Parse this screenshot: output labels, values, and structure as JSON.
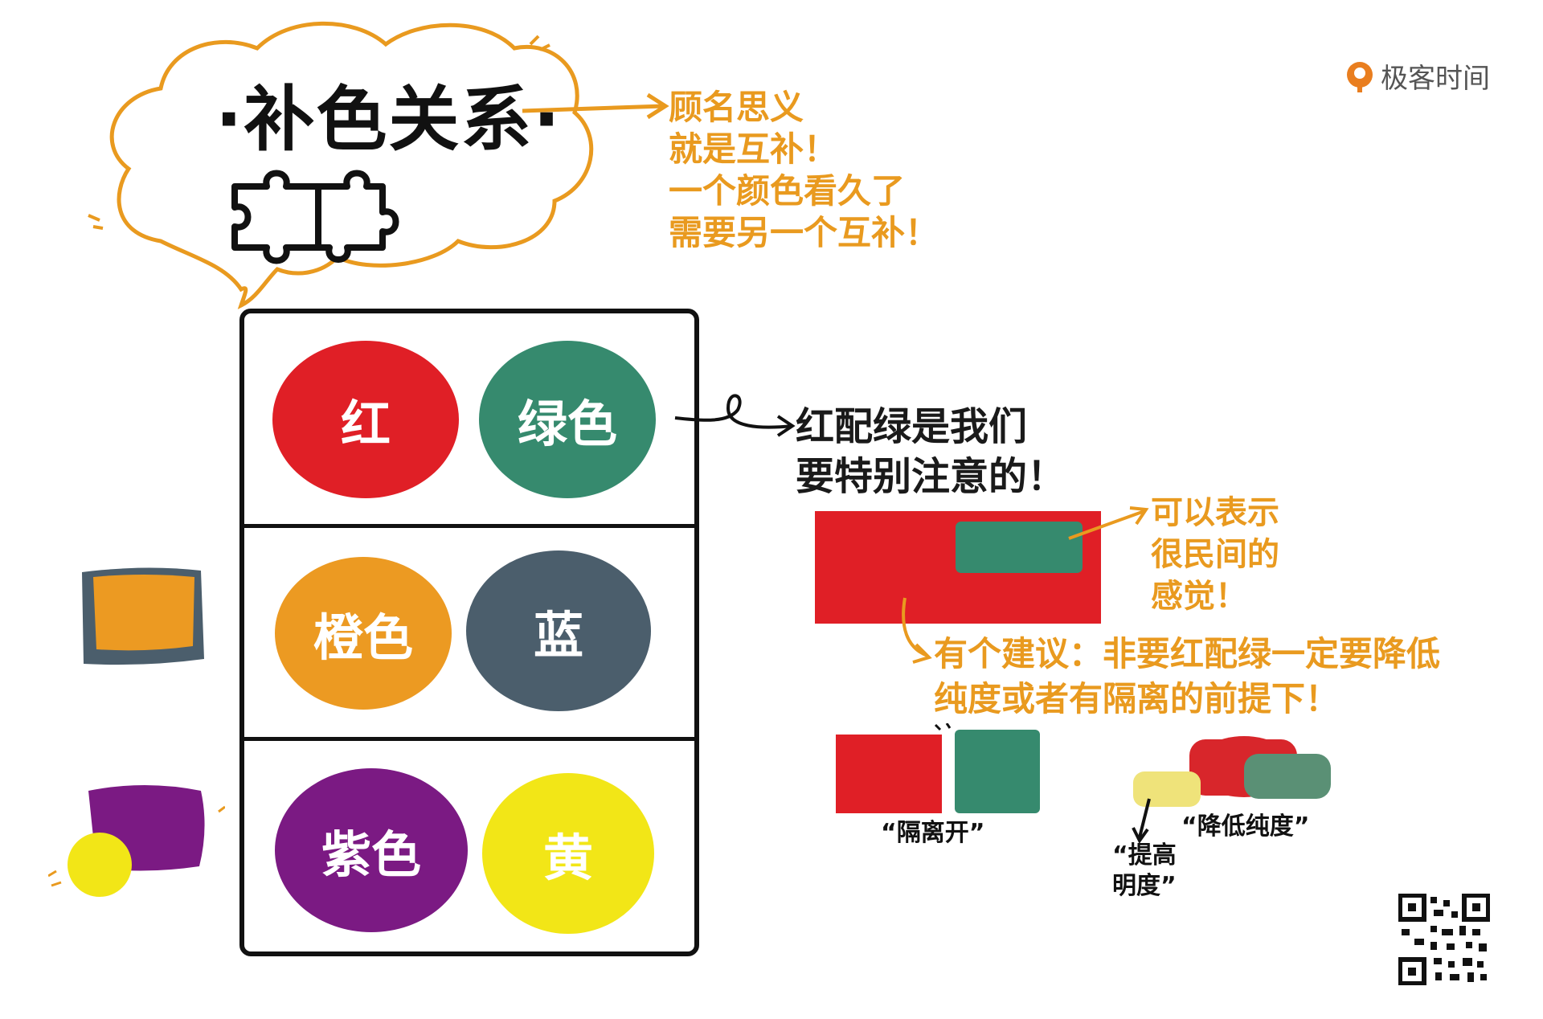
{
  "title": "·补色关系·",
  "logo": {
    "text": "极客时间",
    "brand_color": "#e97e1f"
  },
  "notes": {
    "top": "顾名思义\n就是互补！\n一个颜色看久了\n需要另一个互补！",
    "red_green": "红配绿是我们\n要特别注意的！",
    "folk": "可以表示\n很民间的\n感觉！",
    "suggestion": "有个建议：非要红配绿一定要降低\n纯度或者有隔离的前提下！"
  },
  "pairs": [
    {
      "left": {
        "label": "红",
        "color": "#e01f26"
      },
      "right": {
        "label": "绿色",
        "color": "#368a6e"
      }
    },
    {
      "left": {
        "label": "橙色",
        "color": "#ec9a22"
      },
      "right": {
        "label": "蓝",
        "color": "#4b5e6c"
      }
    },
    {
      "left": {
        "label": "紫色",
        "color": "#7b1a83"
      },
      "right": {
        "label": "黄",
        "color": "#f2e617"
      }
    }
  ],
  "captions": {
    "separate": "“隔离开”",
    "desaturate": "“降低纯度”",
    "brighten": "“提高\n明度”"
  },
  "colors": {
    "red": "#e01f26",
    "green": "#368a6e",
    "orange": "#ec9a22",
    "slate": "#4b5e6c",
    "purple": "#7b1a83",
    "yellow": "#f2e617",
    "pale_yellow": "#efe37a",
    "muted_red": "#d8262b",
    "muted_green": "#5a9075",
    "accent_orange": "#e99a1f"
  }
}
